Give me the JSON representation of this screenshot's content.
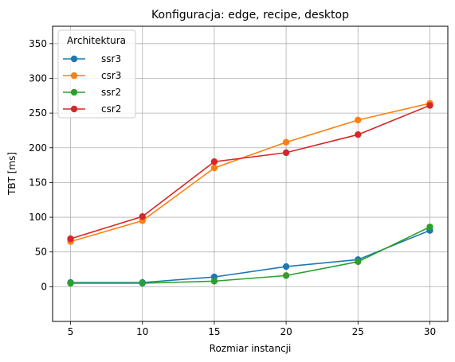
{
  "chart_data": {
    "type": "line",
    "title": "Konfiguracja: edge, recipe, desktop",
    "xlabel": "Rozmiar instancji",
    "ylabel": "TBT [ms]",
    "x": [
      5,
      10,
      15,
      20,
      25,
      30
    ],
    "xlim": [
      3.75,
      31.25
    ],
    "ylim": [
      -50,
      375
    ],
    "xticks": [
      5,
      10,
      15,
      20,
      25,
      30
    ],
    "yticks": [
      0,
      50,
      100,
      150,
      200,
      250,
      300,
      350
    ],
    "grid": true,
    "legend": {
      "title": "Architektura",
      "placement": "top-left"
    },
    "series": [
      {
        "name": "ssr3",
        "color": "#1f77b4",
        "values": [
          6,
          6,
          14,
          29,
          39,
          81
        ]
      },
      {
        "name": "csr3",
        "color": "#ff7f0e",
        "values": [
          65,
          95,
          171,
          208,
          240,
          264
        ]
      },
      {
        "name": "ssr2",
        "color": "#2ca02c",
        "values": [
          5,
          5,
          8,
          16,
          36,
          86
        ]
      },
      {
        "name": "csr2",
        "color": "#d62728",
        "values": [
          69,
          101,
          180,
          193,
          219,
          261
        ]
      }
    ]
  }
}
